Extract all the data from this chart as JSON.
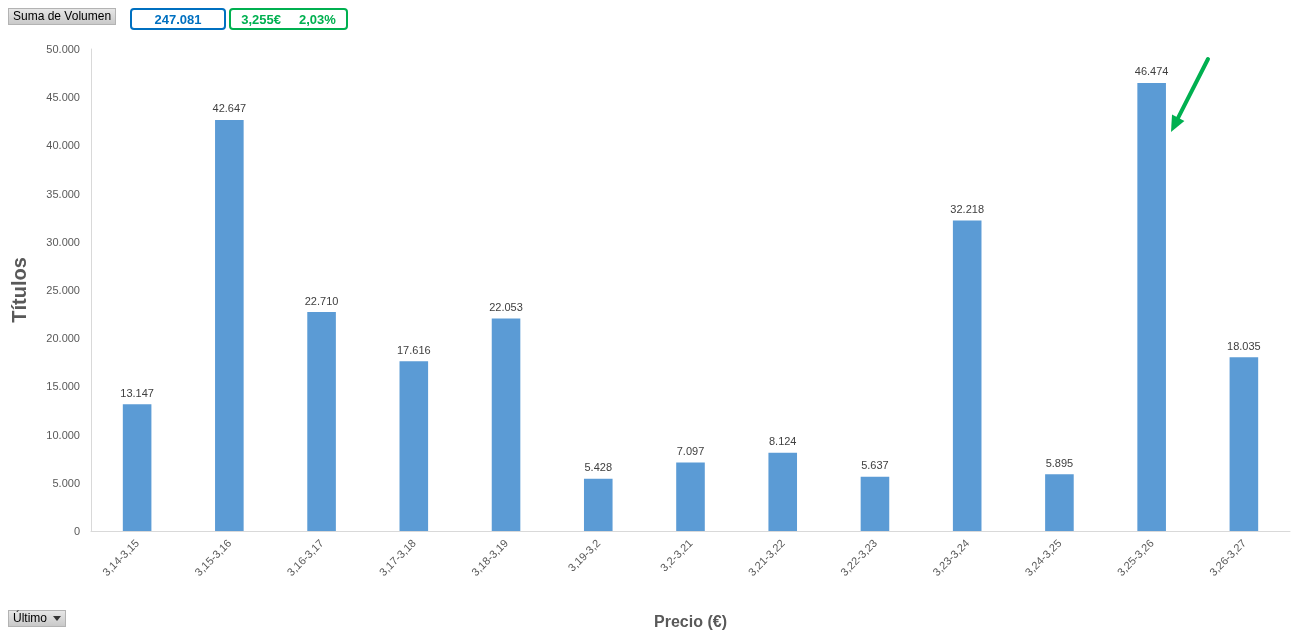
{
  "chart_data": {
    "type": "bar",
    "xlabel": "Precio (€)",
    "ylabel": "Títulos",
    "categories": [
      "3,14-3,15",
      "3,15-3,16",
      "3,16-3,17",
      "3,17-3,18",
      "3,18-3,19",
      "3,19-3,2",
      "3,2-3,21",
      "3,21-3,22",
      "3,22-3,23",
      "3,23-3,24",
      "3,24-3,25",
      "3,25-3,26",
      "3,26-3,27"
    ],
    "values": [
      13147,
      42647,
      22710,
      17616,
      22053,
      5428,
      7097,
      8124,
      5637,
      32218,
      5895,
      46474,
      18035
    ],
    "value_labels": [
      "13.147",
      "42.647",
      "22.710",
      "17.616",
      "22.053",
      "5.428",
      "7.097",
      "8.124",
      "5.637",
      "32.218",
      "5.895",
      "46.474",
      "18.035"
    ],
    "color": "#5b9bd5",
    "ylim": [
      0,
      50000
    ],
    "yticks": [
      0,
      {
        "value": 5000,
        "label": "5.000"
      },
      {
        "value": 10000,
        "label": "10.000"
      },
      {
        "value": 15000,
        "label": "15.000"
      },
      {
        "value": 20000,
        "label": "20.000"
      },
      {
        "value": 25000,
        "label": "25.000"
      },
      {
        "value": 30000,
        "label": "30.000"
      },
      {
        "value": 35000,
        "label": "35.000"
      },
      {
        "value": 40000,
        "label": "40.000"
      },
      {
        "value": 45000,
        "label": "45.000"
      },
      {
        "value": 50000,
        "label": "50.000"
      }
    ],
    "annotations": [
      "Suma de Volumen",
      "247.081",
      "3,255€",
      "2,03%",
      "Último"
    ]
  }
}
